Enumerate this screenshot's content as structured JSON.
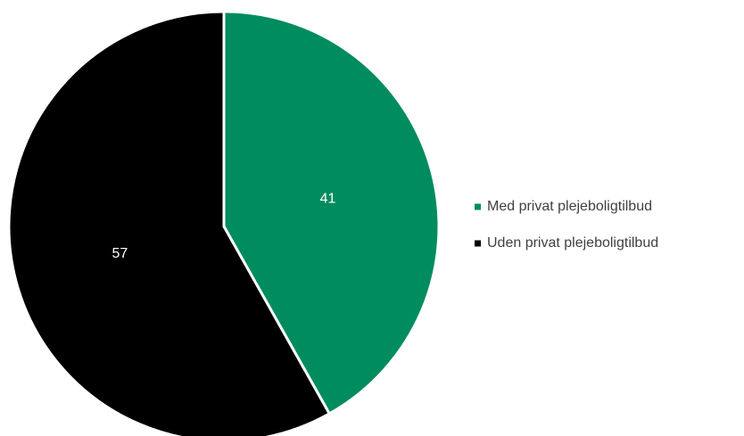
{
  "chart_data": {
    "type": "pie",
    "categories": [
      "Med privat plejeboligtilbud",
      "Uden privat plejeboligtilbud"
    ],
    "values": [
      41,
      57
    ],
    "colors": [
      "#008c5f",
      "#000000"
    ],
    "data_labels": [
      "41",
      "57"
    ],
    "legend_position": "right",
    "title": ""
  }
}
